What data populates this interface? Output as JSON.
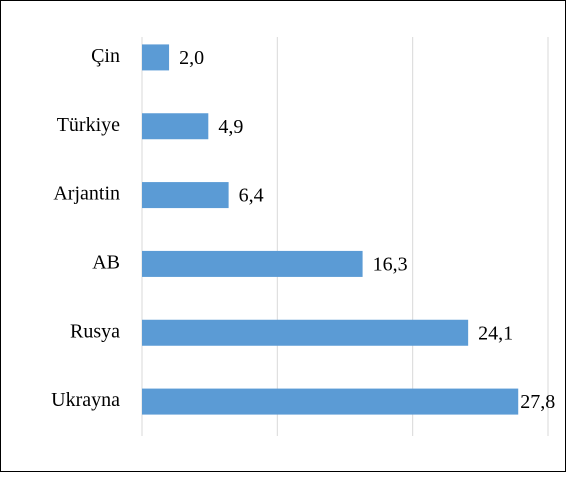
{
  "chart_data": {
    "type": "bar",
    "orientation": "horizontal",
    "categories": [
      "Çin",
      "Türkiye",
      "Arjantin",
      "AB",
      "Rusya",
      "Ukrayna"
    ],
    "values": [
      2.0,
      4.9,
      6.4,
      16.3,
      24.1,
      27.8
    ],
    "value_labels": [
      "2,0",
      "4,9",
      "6,4",
      "16,3",
      "24,1",
      "27,8"
    ],
    "color": "#5b9bd5",
    "xlim": [
      0,
      30
    ],
    "xticks": [
      0,
      10,
      20,
      30
    ],
    "grid": true
  }
}
